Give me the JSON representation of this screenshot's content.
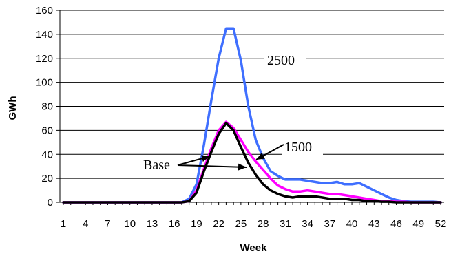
{
  "chart_data": {
    "type": "line",
    "title": "",
    "xlabel": "Week",
    "ylabel": "GWh",
    "xlim": [
      1,
      52
    ],
    "ylim": [
      0,
      160
    ],
    "y_ticks": [
      0,
      20,
      40,
      60,
      80,
      100,
      120,
      140,
      160
    ],
    "x_ticks": [
      1,
      4,
      7,
      10,
      13,
      16,
      19,
      22,
      25,
      28,
      31,
      34,
      37,
      40,
      43,
      46,
      49,
      52
    ],
    "grid": "horizontal",
    "legend": "none",
    "x": [
      1,
      2,
      3,
      4,
      5,
      6,
      7,
      8,
      9,
      10,
      11,
      12,
      13,
      14,
      15,
      16,
      17,
      18,
      19,
      20,
      21,
      22,
      23,
      24,
      25,
      26,
      27,
      28,
      29,
      30,
      31,
      32,
      33,
      34,
      35,
      36,
      37,
      38,
      39,
      40,
      41,
      42,
      43,
      44,
      45,
      46,
      47,
      48,
      49,
      50,
      51,
      52
    ],
    "series": [
      {
        "name": "2500",
        "color": "#3f6fff",
        "values": [
          0,
          0,
          0,
          0,
          0,
          0,
          0,
          0,
          0,
          0,
          0,
          0,
          0,
          0,
          0,
          0,
          0,
          3,
          15,
          48,
          85,
          120,
          145,
          145,
          118,
          80,
          52,
          37,
          26,
          22,
          19,
          19,
          19,
          18,
          17,
          16,
          16,
          17,
          15,
          15,
          16,
          13,
          10,
          7,
          4,
          2,
          1,
          0.5,
          0.5,
          0.5,
          0.5,
          0
        ]
      },
      {
        "name": "1500",
        "color": "#ff00ff",
        "values": [
          0,
          0,
          0,
          0,
          0,
          0,
          0,
          0,
          0,
          0,
          0,
          0,
          0,
          0,
          0,
          0,
          0,
          1,
          10,
          28,
          45,
          60,
          67,
          62,
          52,
          42,
          34,
          27,
          20,
          14,
          11,
          9,
          9,
          10,
          9,
          8,
          7,
          7,
          6,
          5,
          4,
          3,
          2,
          1,
          1,
          0.5,
          0.5,
          0,
          0,
          0,
          0,
          0
        ]
      },
      {
        "name": "Base",
        "color": "#000000",
        "values": [
          0,
          0,
          0,
          0,
          0,
          0,
          0,
          0,
          0,
          0,
          0,
          0,
          0,
          0,
          0,
          0,
          0,
          1,
          8,
          26,
          42,
          57,
          66,
          60,
          46,
          33,
          23,
          15,
          10,
          7,
          5,
          4,
          5,
          5,
          5,
          4,
          3,
          3,
          3,
          2,
          2,
          1,
          1,
          0.5,
          0.5,
          0,
          0,
          0,
          0,
          0,
          0,
          0
        ]
      }
    ],
    "annotations": [
      {
        "text": "2500"
      },
      {
        "text": "1500"
      },
      {
        "text": "Base"
      }
    ]
  }
}
